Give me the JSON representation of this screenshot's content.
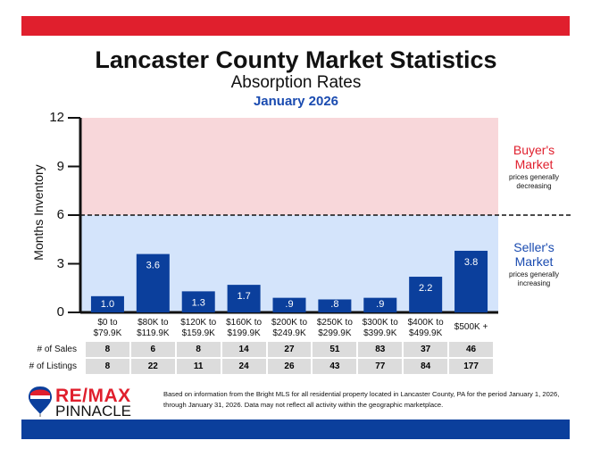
{
  "header": {
    "title": "Lancaster County Market Statistics",
    "subtitle": "Absorption Rates",
    "period": "January 2026"
  },
  "chart_data": {
    "type": "bar",
    "ylabel": "Months Inventory",
    "ylim": [
      0,
      12
    ],
    "yticks": [
      "0",
      "3",
      "6",
      "9",
      "12"
    ],
    "threshold": 6,
    "categories": [
      "$0 to\n$79.9K",
      "$80K to\n$119.9K",
      "$120K to\n$159.9K",
      "$160K to\n$199.9K",
      "$200K to\n$249.9K",
      "$250K to\n$299.9K",
      "$300K to\n$399.9K",
      "$400K to\n$499.9K",
      "$500K +"
    ],
    "values": [
      1.0,
      3.6,
      1.3,
      1.7,
      0.9,
      0.8,
      0.9,
      2.2,
      3.8
    ],
    "value_labels": [
      "1.0",
      "3.6",
      "1.3",
      "1.7",
      ".9",
      ".8",
      ".9",
      "2.2",
      "3.8"
    ],
    "colors": {
      "bar": "#0b3f9c",
      "buyer_zone": "#f8d7da",
      "seller_zone": "#d4e4fb",
      "buyer_text": "#e01f2d",
      "seller_text": "#1a4bb0"
    },
    "zones": {
      "buyer": {
        "title": "Buyer's\nMarket",
        "note": "prices generally\ndecreasing"
      },
      "seller": {
        "title": "Seller's\nMarket",
        "note": "prices generally\nincreasing"
      }
    }
  },
  "table": {
    "sales_label": "# of Sales",
    "listings_label": "# of Listings",
    "sales": [
      "8",
      "6",
      "8",
      "14",
      "27",
      "51",
      "83",
      "37",
      "46"
    ],
    "listings": [
      "8",
      "22",
      "11",
      "24",
      "26",
      "43",
      "77",
      "84",
      "177"
    ]
  },
  "footer": {
    "logo_brand": "RE/MAX",
    "logo_sub": "PINNACLE",
    "disclaimer": "Based on information from the Bright MLS for all residential property located in Lancaster County, PA for the period January 1, 2026, through January 31, 2026.  Data may not reflect all activity within the geographic marketplace."
  }
}
